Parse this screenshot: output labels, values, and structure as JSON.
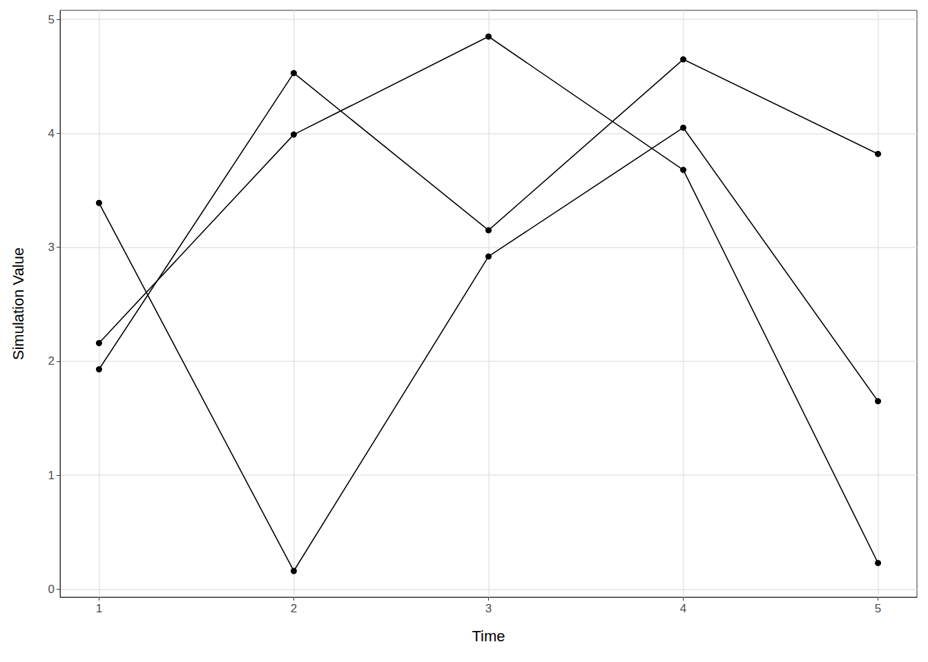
{
  "chart_data": {
    "type": "line",
    "x_label": "Time",
    "y_label": "Simulation Value",
    "x": [
      1,
      2,
      3,
      4,
      5
    ],
    "series": [
      {
        "color": "#000000",
        "values": [
          3.39,
          0.16,
          2.92,
          4.05,
          1.65
        ]
      },
      {
        "color": "#000000",
        "values": [
          1.93,
          4.53,
          3.15,
          4.65,
          3.82
        ]
      },
      {
        "color": "#000000",
        "values": [
          2.16,
          3.99,
          4.85,
          3.68,
          0.23
        ]
      }
    ],
    "xlim": [
      0.8,
      5.2
    ],
    "xticks": [
      1,
      2,
      3,
      4,
      5
    ],
    "ylim": [
      -0.07,
      5.08
    ],
    "yticks": [
      0,
      1,
      2,
      3,
      4,
      5
    ],
    "grid": true,
    "marker": "circle"
  }
}
